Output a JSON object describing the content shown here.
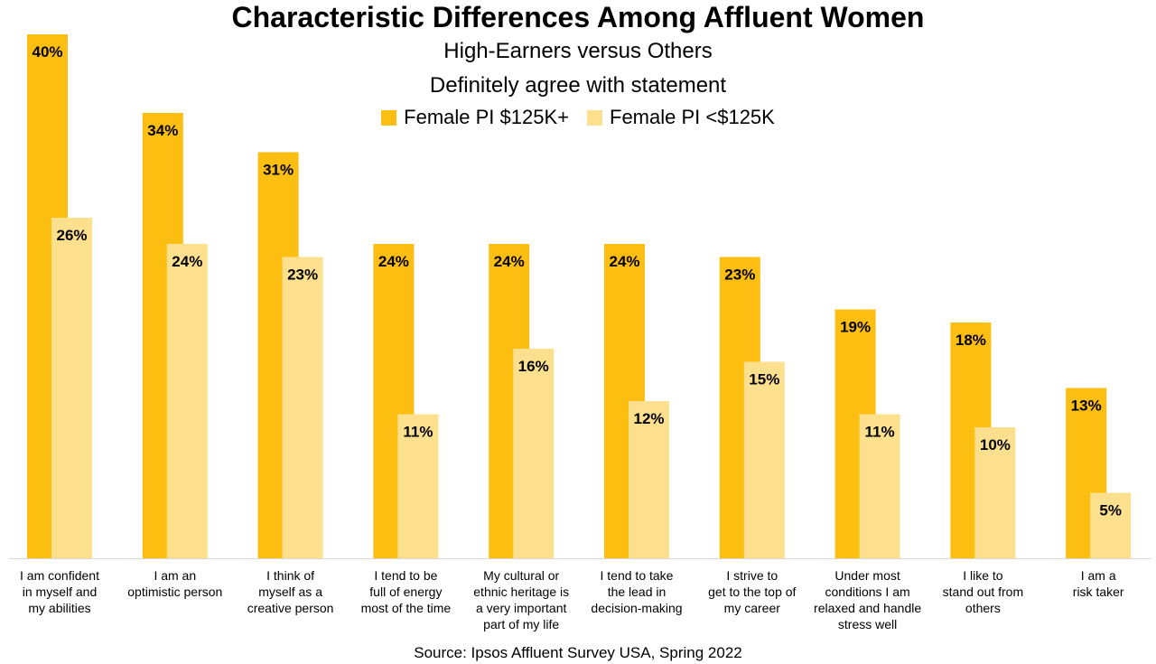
{
  "chart_data": {
    "type": "bar",
    "title": "Characteristic Differences Among Affluent Women",
    "subtitle": "High-Earners versus Others",
    "subtitle2": "Definitely agree with statement",
    "categories": [
      "I am confident\nin myself and\nmy abilities",
      "I am an\noptimistic person",
      "I think of\nmyself as a\ncreative person",
      "I tend to be\nfull of energy\nmost of the time",
      "My cultural or\nethnic heritage is\na very important\npart of my life",
      "I tend to take\nthe lead in\ndecision-making",
      "I strive to\nget to the top of\nmy career",
      "Under most\nconditions I am\nrelaxed and handle\nstress well",
      "I like to\nstand out from\nothers",
      "I am a\nrisk taker"
    ],
    "series": [
      {
        "name": "Female PI $125K+",
        "color": "#FDBE12",
        "values": [
          40,
          34,
          31,
          24,
          24,
          24,
          23,
          19,
          18,
          13
        ]
      },
      {
        "name": "Female PI <$125K",
        "color": "#FDE08E",
        "values": [
          26,
          24,
          23,
          11,
          16,
          12,
          15,
          11,
          10,
          5
        ]
      }
    ],
    "value_suffix": "%",
    "ylim": [
      0,
      40
    ],
    "grid": false,
    "legend_position": "top-center",
    "source": "Source: Ipsos Affluent Survey USA, Spring 2022"
  }
}
